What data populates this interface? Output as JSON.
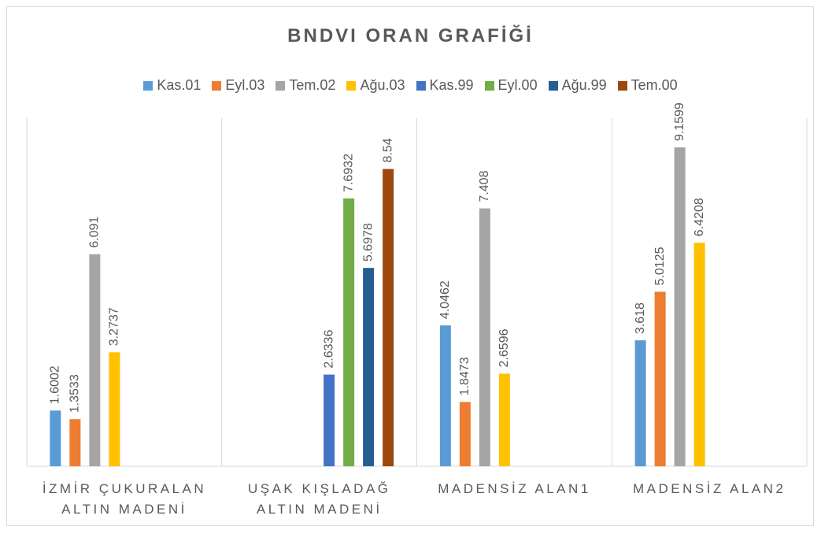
{
  "chart_data": {
    "type": "bar",
    "title": "BNDVI ORAN GRAFİĞİ",
    "categories": [
      "İZMİR ÇUKURALAN ALTIN MADENİ",
      "UŞAK KIŞLADAĞ ALTIN MADENİ",
      "MADENSİZ ALAN1",
      "MADENSİZ ALAN2"
    ],
    "series": [
      {
        "name": "Kas.01",
        "color": "#5b9bd5",
        "values": [
          1.6002,
          null,
          4.0462,
          3.618
        ]
      },
      {
        "name": "Eyl.03",
        "color": "#ed7d31",
        "values": [
          1.3533,
          null,
          1.8473,
          5.0125
        ]
      },
      {
        "name": "Tem.02",
        "color": "#a5a5a5",
        "values": [
          6.091,
          null,
          7.408,
          9.1599
        ]
      },
      {
        "name": "Ağu.03",
        "color": "#ffc000",
        "values": [
          3.2737,
          null,
          2.6596,
          6.4208
        ]
      },
      {
        "name": "Kas.99",
        "color": "#4472c4",
        "values": [
          null,
          2.6336,
          null,
          null
        ]
      },
      {
        "name": "Eyl.00",
        "color": "#70ad47",
        "values": [
          null,
          7.6932,
          null,
          null
        ]
      },
      {
        "name": "Ağu.99",
        "color": "#255e91",
        "values": [
          null,
          5.6978,
          null,
          null
        ]
      },
      {
        "name": "Tem.00",
        "color": "#9e480e",
        "values": [
          null,
          8.54,
          null,
          null
        ]
      }
    ],
    "ylim": [
      0,
      10
    ],
    "legend": "top"
  }
}
